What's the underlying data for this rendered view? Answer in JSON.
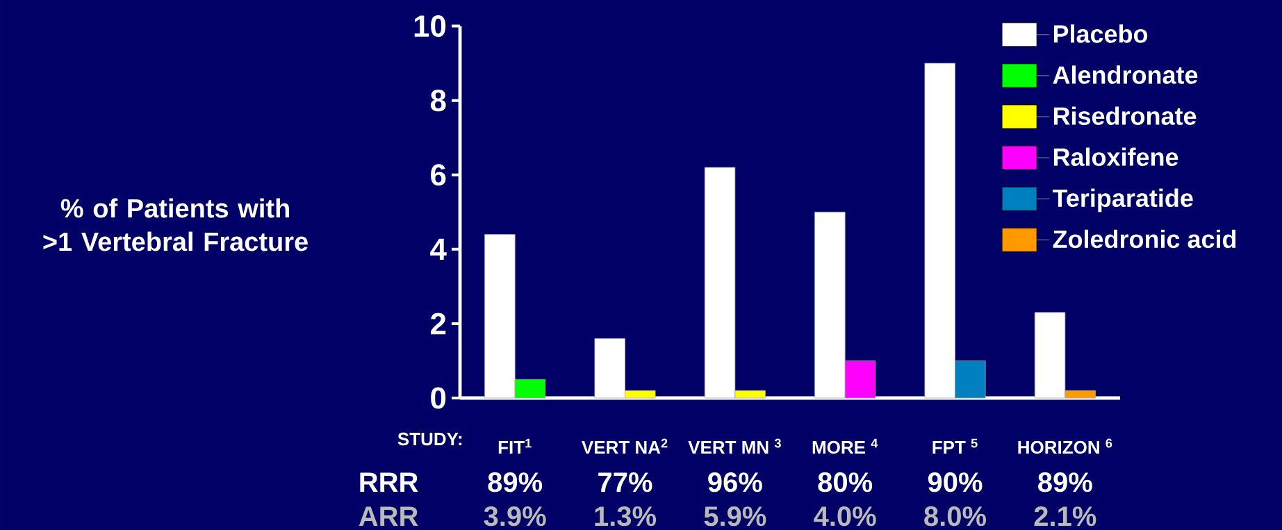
{
  "chart_data": {
    "type": "bar",
    "xlabel": "STUDY:",
    "ylabel": "% of Patients with >1 Vertebral Fracture",
    "categories": [
      "FIT$^{1}$",
      "VERT NA$^{2}$",
      "VERT MN $^{3}$",
      "MORE $^{4}$",
      "FPT $^{5}$",
      "HORIZON $^{6}$"
    ],
    "series": [
      {
        "name": "Placebo",
        "color": "#ffffff",
        "values": [
          4.4,
          1.6,
          6.2,
          5.0,
          9.0,
          2.3
        ]
      },
      {
        "name": "Alendronate",
        "color": "#00ff00",
        "values": [
          0.5,
          null,
          null,
          null,
          null,
          null
        ]
      },
      {
        "name": "Risedronate",
        "color": "#ffff00",
        "values": [
          null,
          0.2,
          0.2,
          null,
          null,
          null
        ]
      },
      {
        "name": "Raloxifene",
        "color": "#ff00ff",
        "values": [
          null,
          null,
          null,
          1.0,
          null,
          null
        ]
      },
      {
        "name": "Teriparatide",
        "color": "#0080c0",
        "values": [
          null,
          null,
          null,
          null,
          1.0,
          null
        ]
      },
      {
        "name": "Zoledronic acid",
        "color": "#ff9900",
        "values": [
          null,
          null,
          null,
          null,
          null,
          0.2
        ]
      }
    ],
    "ylim": [
      0,
      10
    ],
    "yticks": [
      0,
      2,
      4,
      6,
      8,
      10
    ],
    "legend": "top right",
    "annotations": [
      "RRR",
      "89%",
      "77%",
      "96%",
      "80%",
      "90%",
      "89%",
      "ARR",
      "3.9%",
      "1.3%",
      "5.9%",
      "4.0%",
      "8.0%",
      "2.1%"
    ]
  }
}
